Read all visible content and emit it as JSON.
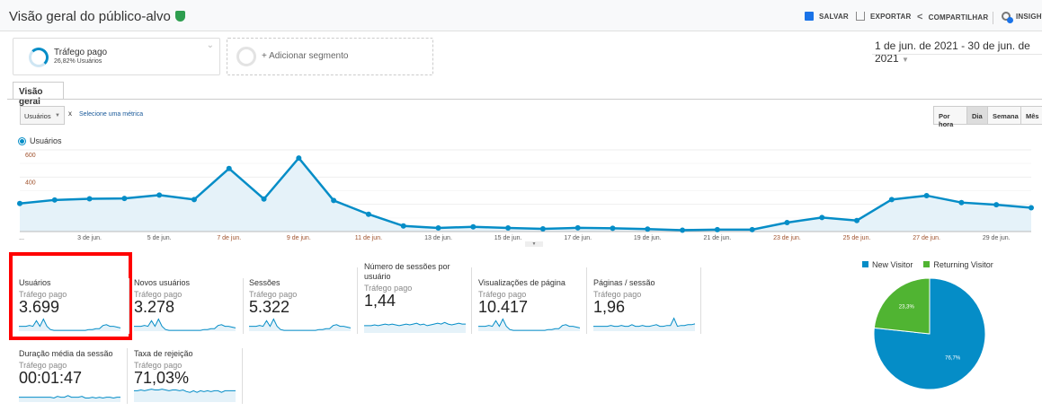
{
  "header": {
    "title": "Visão geral do público-alvo",
    "save": "SALVAR",
    "export": "EXPORTAR",
    "share": "COMPARTILHAR",
    "insights": "INSIGHTS"
  },
  "segments": {
    "active": {
      "name": "Tráfego pago",
      "detail": "26,82% Usuários"
    },
    "add": "+ Adicionar segmento"
  },
  "date_range": "1 de jun. de 2021 - 30 de jun. de 2021",
  "tabs": [
    {
      "label": "Visão geral",
      "active": true
    }
  ],
  "metric_selector": {
    "value": "Usuários",
    "remove": "x",
    "select_other": "Selecione uma métrica"
  },
  "granularity": {
    "options": [
      "Por hora",
      "Dia",
      "Semana",
      "Mês"
    ],
    "selected": "Dia"
  },
  "colors": {
    "accent": "#058dc7",
    "fill": "#e5f2f9",
    "new": "#058dc7",
    "returning": "#50b432",
    "highlight": "#ff0000"
  },
  "chart_data": {
    "type": "area",
    "series": [
      {
        "name": "Usuários",
        "values": [
          206,
          232,
          241,
          243,
          268,
          235,
          463,
          239,
          540,
          228,
          127,
          41,
          26,
          35,
          26,
          20,
          27,
          24,
          18,
          10,
          14,
          14,
          66,
          103,
          81,
          235,
          264,
          213,
          197,
          175
        ]
      }
    ],
    "x": [
      "1 de jun.",
      "2 de jun.",
      "3 de jun.",
      "4 de jun.",
      "5 de jun.",
      "6 de jun.",
      "7 de jun.",
      "8 de jun.",
      "9 de jun.",
      "10 de jun.",
      "11 de jun.",
      "12 de jun.",
      "13 de jun.",
      "14 de jun.",
      "15 de jun.",
      "16 de jun.",
      "17 de jun.",
      "18 de jun.",
      "19 de jun.",
      "20 de jun.",
      "21 de jun.",
      "22 de jun.",
      "23 de jun.",
      "24 de jun.",
      "25 de jun.",
      "26 de jun.",
      "27 de jun.",
      "28 de jun.",
      "29 de jun.",
      "30 de jun."
    ],
    "x_tick_labels": [
      "...",
      "3 de jun.",
      "5 de jun.",
      "7 de jun.",
      "9 de jun.",
      "11 de jun.",
      "13 de jun.",
      "15 de jun.",
      "17 de jun.",
      "19 de jun.",
      "21 de jun.",
      "23 de jun.",
      "25 de jun.",
      "27 de jun.",
      "29 de jun."
    ],
    "y_ticks": [
      "200",
      "400",
      "600"
    ],
    "ylim": [
      0,
      600
    ],
    "grid": true,
    "legend": "top-left"
  },
  "metrics": [
    {
      "name": "Usuários",
      "segment": "Tráfego pago",
      "value": "3.699",
      "highlighted": true
    },
    {
      "name": "Novos usuários",
      "segment": "Tráfego pago",
      "value": "3.278"
    },
    {
      "name": "Sessões",
      "segment": "Tráfego pago",
      "value": "5.322"
    },
    {
      "name": "Número de sessões por usuário",
      "segment": "Tráfego pago",
      "value": "1,44"
    },
    {
      "name": "Visualizações de página",
      "segment": "Tráfego pago",
      "value": "10.417"
    },
    {
      "name": "Páginas / sessão",
      "segment": "Tráfego pago",
      "value": "1,96"
    },
    {
      "name": "Duração média da sessão",
      "segment": "Tráfego pago",
      "value": "00:01:47"
    },
    {
      "name": "Taxa de rejeição",
      "segment": "Tráfego pago",
      "value": "71,03%"
    }
  ],
  "pie": {
    "type": "pie",
    "slices": [
      {
        "label": "New Visitor",
        "value": 76.7,
        "text": "76,7%"
      },
      {
        "label": "Returning Visitor",
        "value": 23.3,
        "text": "23,3%"
      }
    ]
  }
}
